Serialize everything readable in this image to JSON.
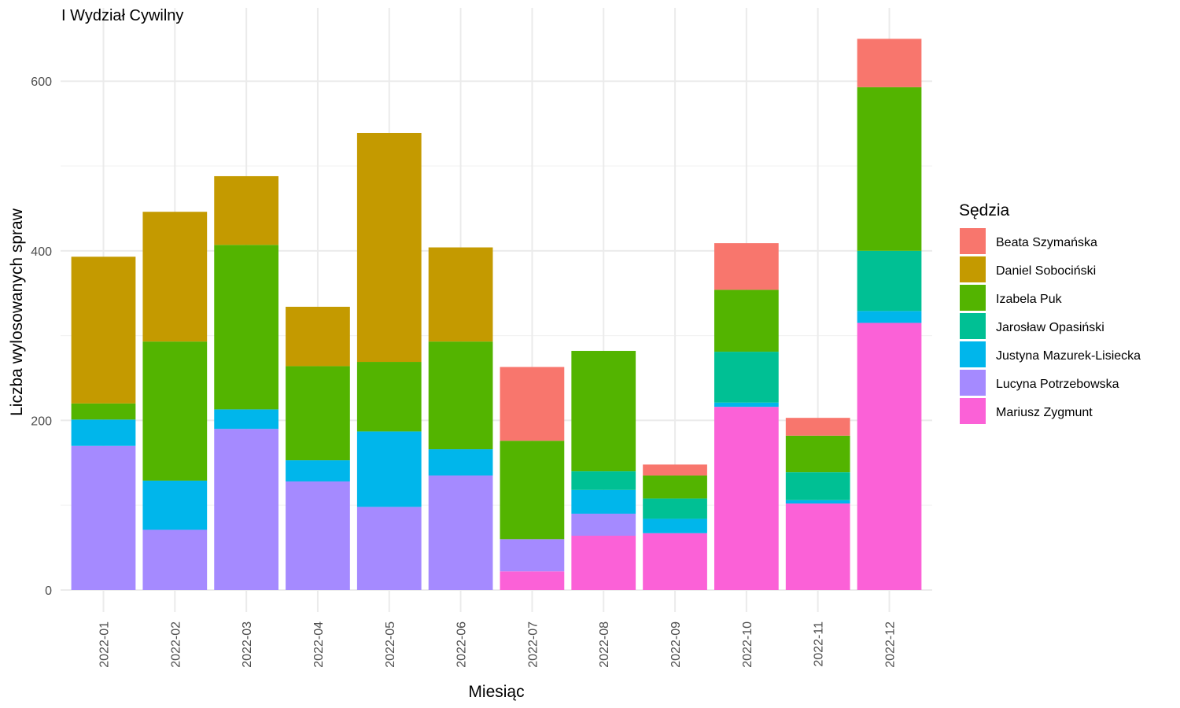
{
  "chart_data": {
    "type": "bar",
    "stacked": true,
    "title": "I Wydział Cywilny",
    "xlabel": "Miesiąc",
    "ylabel": "Liczba wylosowanych spraw",
    "ylim": [
      0,
      650
    ],
    "yticks": [
      0,
      200,
      400,
      600
    ],
    "grid": true,
    "legend_title": "Sędzia",
    "legend_position": "right",
    "categories": [
      "2022-01",
      "2022-02",
      "2022-03",
      "2022-04",
      "2022-05",
      "2022-06",
      "2022-07",
      "2022-08",
      "2022-09",
      "2022-10",
      "2022-11",
      "2022-12"
    ],
    "series": [
      {
        "name": "Beata Szymańska",
        "color": "#F8766D",
        "values": [
          0,
          0,
          0,
          0,
          0,
          0,
          87,
          0,
          13,
          55,
          21,
          57
        ]
      },
      {
        "name": "Daniel Sobociński",
        "color": "#C49A00",
        "values": [
          173,
          153,
          81,
          70,
          270,
          111,
          0,
          0,
          0,
          0,
          0,
          0
        ]
      },
      {
        "name": "Izabela Puk",
        "color": "#53B400",
        "values": [
          19,
          164,
          194,
          111,
          82,
          127,
          116,
          142,
          27,
          73,
          43,
          193
        ]
      },
      {
        "name": "Jarosław Opasiński",
        "color": "#00C094",
        "values": [
          0,
          0,
          0,
          0,
          0,
          0,
          0,
          22,
          24,
          60,
          33,
          71
        ]
      },
      {
        "name": "Justyna Mazurek-Lisiecka",
        "color": "#00B6EB",
        "values": [
          31,
          58,
          23,
          25,
          89,
          31,
          0,
          28,
          17,
          5,
          4,
          14
        ]
      },
      {
        "name": "Lucyna Potrzebowska",
        "color": "#A58AFF",
        "values": [
          170,
          71,
          190,
          128,
          98,
          135,
          38,
          26,
          0,
          0,
          0,
          0
        ]
      },
      {
        "name": "Mariusz Zygmunt",
        "color": "#FB61D7",
        "values": [
          0,
          0,
          0,
          0,
          0,
          0,
          22,
          64,
          67,
          216,
          102,
          315
        ]
      }
    ]
  }
}
